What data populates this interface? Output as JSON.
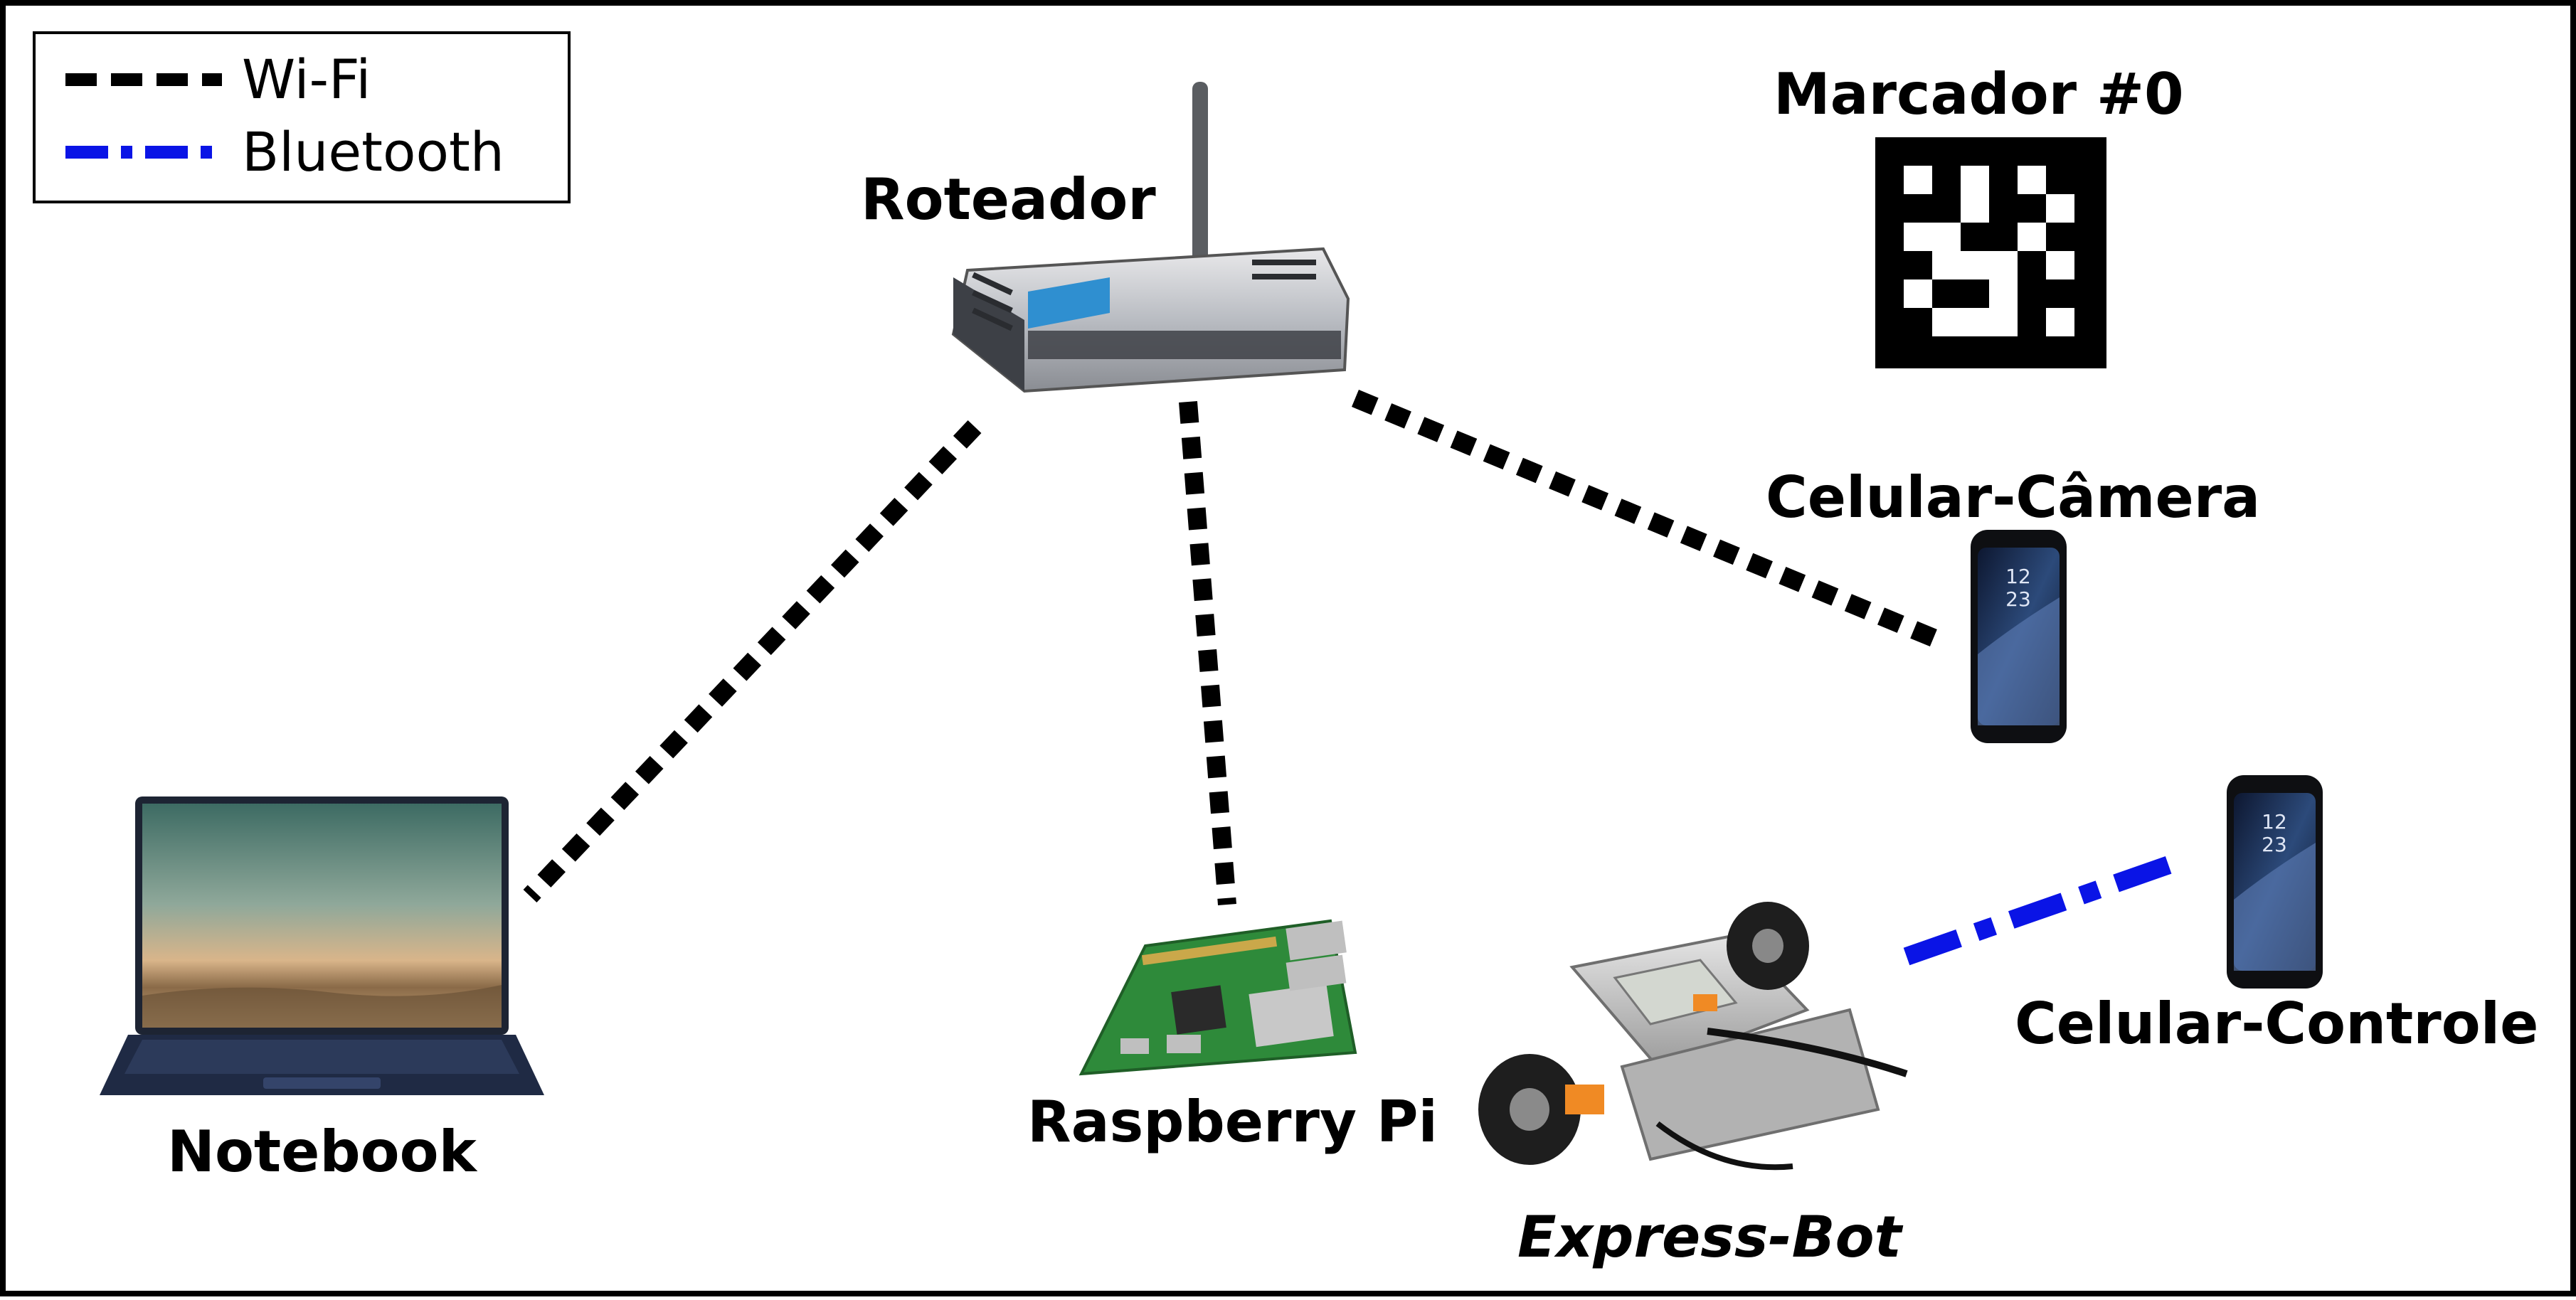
{
  "legend": {
    "wifi_label": "Wi-Fi",
    "bluetooth_label": "Bluetooth",
    "wifi_color": "#000000",
    "bluetooth_color": "#0a14e6"
  },
  "nodes": {
    "router": "Roteador",
    "marker": "Marcador #0",
    "phone_camera": "Celular-Câmera",
    "phone_control": "Celular-Controle",
    "notebook": "Notebook",
    "raspberry": "Raspberry Pi",
    "robot": "Express-Bot"
  },
  "connections": [
    {
      "from": "Roteador",
      "to": "Notebook",
      "type": "Wi-Fi"
    },
    {
      "from": "Roteador",
      "to": "Raspberry Pi",
      "type": "Wi-Fi"
    },
    {
      "from": "Roteador",
      "to": "Celular-Câmera",
      "type": "Wi-Fi"
    },
    {
      "from": "Express-Bot",
      "to": "Celular-Controle",
      "type": "Bluetooth"
    }
  ],
  "icons": {
    "router": "wireless-router-icon",
    "marker": "aruco-marker-icon",
    "phone": "smartphone-icon",
    "notebook": "laptop-icon",
    "raspberry": "raspberry-pi-board-icon",
    "robot": "lego-robot-icon"
  }
}
